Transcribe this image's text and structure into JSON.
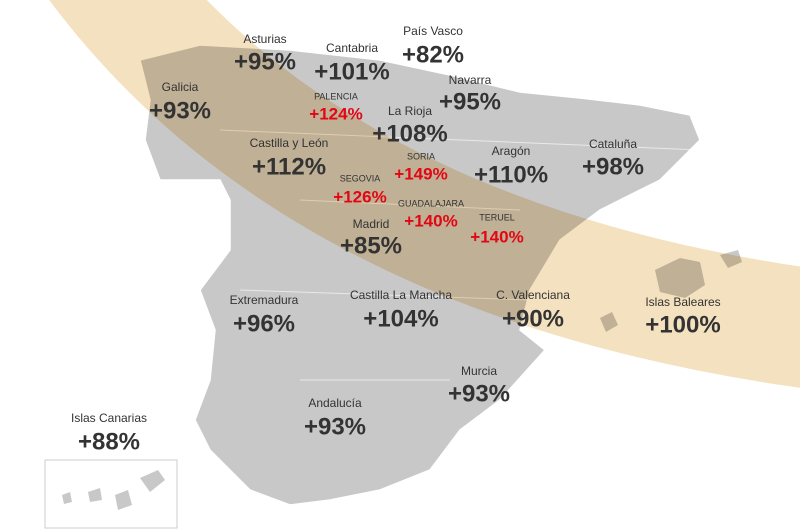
{
  "regions": [
    {
      "name": "Asturias",
      "value": "+95%",
      "color": "#333333"
    },
    {
      "name": "Cantabria",
      "value": "+101%",
      "color": "#333333"
    },
    {
      "name": "País Vasco",
      "value": "+82%",
      "color": "#333333"
    },
    {
      "name": "Galicia",
      "value": "+93%",
      "color": "#333333"
    },
    {
      "name": "Navarra",
      "value": "+95%",
      "color": "#333333"
    },
    {
      "name": "PALENCIA",
      "value": "+124%",
      "color": "#e30613"
    },
    {
      "name": "La Rioja",
      "value": "+108%",
      "color": "#333333"
    },
    {
      "name": "Castilla y León",
      "value": "+112%",
      "color": "#333333"
    },
    {
      "name": "SORIA",
      "value": "+149%",
      "color": "#e30613"
    },
    {
      "name": "Aragón",
      "value": "+110%",
      "color": "#333333"
    },
    {
      "name": "Cataluña",
      "value": "+98%",
      "color": "#333333"
    },
    {
      "name": "SEGOVIA",
      "value": "+126%",
      "color": "#e30613"
    },
    {
      "name": "GUADALAJARA",
      "value": "+140%",
      "color": "#e30613"
    },
    {
      "name": "TERUEL",
      "value": "+140%",
      "color": "#e30613"
    },
    {
      "name": "Madrid",
      "value": "+85%",
      "color": "#333333"
    },
    {
      "name": "Extremadura",
      "value": "+96%",
      "color": "#333333"
    },
    {
      "name": "Castilla La Mancha",
      "value": "+104%",
      "color": "#333333"
    },
    {
      "name": "C. Valenciana",
      "value": "+90%",
      "color": "#333333"
    },
    {
      "name": "Islas Baleares",
      "value": "+100%",
      "color": "#333333"
    },
    {
      "name": "Murcia",
      "value": "+93%",
      "color": "#333333"
    },
    {
      "name": "Andalucía",
      "value": "+93%",
      "color": "#333333"
    },
    {
      "name": "Islas Canarias",
      "value": "+88%",
      "color": "#333333"
    }
  ]
}
